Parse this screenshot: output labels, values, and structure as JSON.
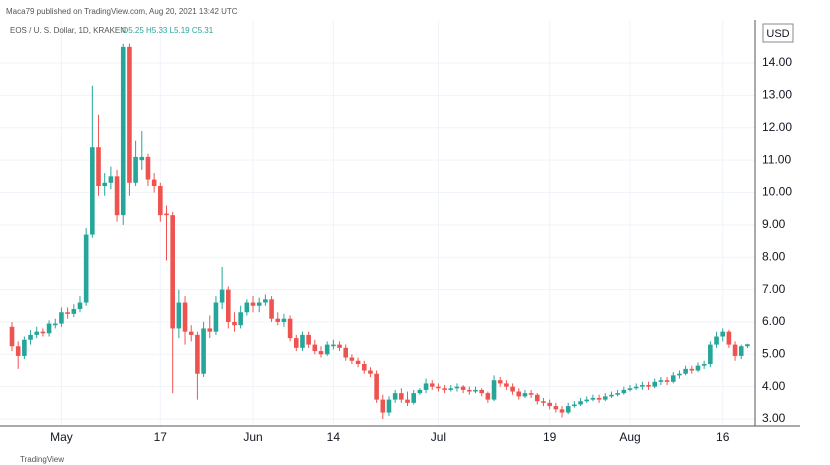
{
  "header": {
    "publisher": "Maca79 published on TradingView.com, Aug 20, 2021 13:42 UTC",
    "footer": "TradingView"
  },
  "chart_data": {
    "type": "candlestick",
    "symbol": "EOS / U. S. Dollar, 1D, KRAKEN",
    "legend": "O5.25 H5.33 L5.19 C5.31",
    "currency": "USD",
    "up_color": "#26a69a",
    "down_color": "#ef5350",
    "grid": true,
    "ylim": [
      2.8,
      15.3
    ],
    "yticks": [
      {
        "value": 3,
        "label": "3.00"
      },
      {
        "value": 4,
        "label": "4.00"
      },
      {
        "value": 5,
        "label": "5.00"
      },
      {
        "value": 6,
        "label": "6.00"
      },
      {
        "value": 7,
        "label": "7.00"
      },
      {
        "value": 8,
        "label": "8.00"
      },
      {
        "value": 9,
        "label": "9.00"
      },
      {
        "value": 10,
        "label": "10.00"
      },
      {
        "value": 11,
        "label": "11.00"
      },
      {
        "value": 12,
        "label": "12.00"
      },
      {
        "value": 13,
        "label": "13.00"
      },
      {
        "value": 14,
        "label": "14.00"
      }
    ],
    "categories": [
      null,
      null,
      null,
      null,
      null,
      null,
      null,
      null,
      "May",
      null,
      null,
      null,
      null,
      null,
      null,
      null,
      null,
      null,
      null,
      null,
      null,
      null,
      null,
      null,
      "17",
      null,
      null,
      null,
      null,
      null,
      null,
      null,
      null,
      null,
      null,
      null,
      null,
      null,
      null,
      "Jun",
      null,
      null,
      null,
      null,
      null,
      null,
      null,
      null,
      null,
      null,
      null,
      null,
      "14",
      null,
      null,
      null,
      null,
      null,
      null,
      null,
      null,
      null,
      null,
      null,
      null,
      null,
      null,
      null,
      null,
      "Jul",
      null,
      null,
      null,
      null,
      null,
      null,
      null,
      null,
      null,
      null,
      null,
      null,
      null,
      null,
      null,
      null,
      null,
      "19",
      null,
      null,
      null,
      null,
      null,
      null,
      null,
      null,
      null,
      null,
      null,
      null,
      "Aug",
      null,
      null,
      null,
      null,
      null,
      null,
      null,
      null,
      null,
      null,
      null,
      null,
      null,
      null,
      "16",
      null,
      null,
      null,
      null
    ],
    "open": [
      5.85,
      5.25,
      4.95,
      5.45,
      5.6,
      5.7,
      5.65,
      5.9,
      5.95,
      6.3,
      6.25,
      6.4,
      6.6,
      8.7,
      11.4,
      10.2,
      10.3,
      10.5,
      9.3,
      14.5,
      10.3,
      11.0,
      11.1,
      10.4,
      10.2,
      9.35,
      9.3,
      5.8,
      6.6,
      5.7,
      5.6,
      4.4,
      5.8,
      5.7,
      6.6,
      7.0,
      6.0,
      5.9,
      6.3,
      6.6,
      6.5,
      6.6,
      6.7,
      6.1,
      6.0,
      6.1,
      5.5,
      5.2,
      5.6,
      5.3,
      5.1,
      5.0,
      5.25,
      5.3,
      5.2,
      4.9,
      4.8,
      4.7,
      4.5,
      4.4,
      3.6,
      3.2,
      3.6,
      3.8,
      3.6,
      3.5,
      3.8,
      3.9,
      4.1,
      4.0,
      3.95,
      3.9,
      3.95,
      4.0,
      3.9,
      3.85,
      3.9,
      3.8,
      3.6,
      4.2,
      4.1,
      4.0,
      3.85,
      3.7,
      3.8,
      3.75,
      3.55,
      3.5,
      3.4,
      3.3,
      3.2,
      3.4,
      3.45,
      3.55,
      3.6,
      3.65,
      3.6,
      3.7,
      3.75,
      3.8,
      3.9,
      3.95,
      4.0,
      4.05,
      4.0,
      4.15,
      4.2,
      4.15,
      4.35,
      4.4,
      4.55,
      4.5,
      4.65,
      4.7,
      5.3,
      5.55,
      5.7,
      5.3,
      4.95,
      5.25
    ],
    "high": [
      6.0,
      5.4,
      5.55,
      5.75,
      5.85,
      5.8,
      6.05,
      6.1,
      6.45,
      6.45,
      6.55,
      6.8,
      8.9,
      13.3,
      12.4,
      10.6,
      10.8,
      10.7,
      14.6,
      14.6,
      11.6,
      11.9,
      11.2,
      10.6,
      10.3,
      9.6,
      9.4,
      7.0,
      6.8,
      5.9,
      5.7,
      6.0,
      6.2,
      6.8,
      7.7,
      7.1,
      6.3,
      6.5,
      6.7,
      6.8,
      6.75,
      6.85,
      6.8,
      6.3,
      6.25,
      6.2,
      5.6,
      5.7,
      5.7,
      5.45,
      5.25,
      5.4,
      5.45,
      5.4,
      5.3,
      5.0,
      4.9,
      4.8,
      4.6,
      4.5,
      3.75,
      3.7,
      3.9,
      3.95,
      3.85,
      3.9,
      3.95,
      4.25,
      4.2,
      4.1,
      4.05,
      4.05,
      4.1,
      4.05,
      4.0,
      4.0,
      3.95,
      3.85,
      4.35,
      4.3,
      4.2,
      4.1,
      3.95,
      3.9,
      3.9,
      3.8,
      3.65,
      3.6,
      3.5,
      3.4,
      3.5,
      3.55,
      3.65,
      3.7,
      3.75,
      3.75,
      3.8,
      3.85,
      3.9,
      4.0,
      4.05,
      4.1,
      4.15,
      4.15,
      4.25,
      4.3,
      4.3,
      4.45,
      4.5,
      4.65,
      4.65,
      4.75,
      4.8,
      5.4,
      5.7,
      5.8,
      5.75,
      5.4,
      5.3,
      5.33
    ],
    "low": [
      5.1,
      4.55,
      4.85,
      5.3,
      5.5,
      5.55,
      5.55,
      5.8,
      5.85,
      6.1,
      6.15,
      6.3,
      6.5,
      8.6,
      9.9,
      9.9,
      10.1,
      9.1,
      9.0,
      9.9,
      10.2,
      10.7,
      10.2,
      10.0,
      9.1,
      7.9,
      3.8,
      5.5,
      5.3,
      5.4,
      3.6,
      4.3,
      5.5,
      5.6,
      6.4,
      5.8,
      5.7,
      5.8,
      6.2,
      6.3,
      6.3,
      6.5,
      6.0,
      5.9,
      5.85,
      5.4,
      5.1,
      5.1,
      5.2,
      5.0,
      4.9,
      4.95,
      5.15,
      5.1,
      4.8,
      4.7,
      4.6,
      4.4,
      4.3,
      3.5,
      3.0,
      3.1,
      3.5,
      3.5,
      3.4,
      3.45,
      3.75,
      3.8,
      3.9,
      3.85,
      3.8,
      3.85,
      3.85,
      3.8,
      3.75,
      3.8,
      3.7,
      3.5,
      3.55,
      4.0,
      3.9,
      3.75,
      3.6,
      3.65,
      3.65,
      3.45,
      3.4,
      3.3,
      3.2,
      3.05,
      3.15,
      3.35,
      3.4,
      3.5,
      3.55,
      3.5,
      3.55,
      3.65,
      3.7,
      3.75,
      3.85,
      3.9,
      3.9,
      3.9,
      3.95,
      4.05,
      4.05,
      4.1,
      4.25,
      4.35,
      4.4,
      4.45,
      4.55,
      4.6,
      5.2,
      5.4,
      5.2,
      4.8,
      4.85,
      5.19
    ],
    "close": [
      5.25,
      4.95,
      5.45,
      5.6,
      5.7,
      5.65,
      5.95,
      5.95,
      6.3,
      6.25,
      6.4,
      6.6,
      8.7,
      11.4,
      10.2,
      10.3,
      10.5,
      9.3,
      14.5,
      10.3,
      11.1,
      11.1,
      10.4,
      10.2,
      9.3,
      9.3,
      5.8,
      6.6,
      5.7,
      5.6,
      4.4,
      5.8,
      5.7,
      6.6,
      7.0,
      6.0,
      5.9,
      6.3,
      6.6,
      6.5,
      6.6,
      6.7,
      6.1,
      6.0,
      6.1,
      5.5,
      5.2,
      5.6,
      5.3,
      5.1,
      5.0,
      5.3,
      5.3,
      5.2,
      4.9,
      4.8,
      4.7,
      4.5,
      4.4,
      3.6,
      3.2,
      3.6,
      3.8,
      3.6,
      3.5,
      3.8,
      3.9,
      4.1,
      4.0,
      3.95,
      3.9,
      3.95,
      4.0,
      3.9,
      3.85,
      3.9,
      3.8,
      3.6,
      4.2,
      4.1,
      4.0,
      3.85,
      3.7,
      3.8,
      3.75,
      3.55,
      3.5,
      3.4,
      3.3,
      3.2,
      3.4,
      3.45,
      3.55,
      3.6,
      3.65,
      3.6,
      3.7,
      3.75,
      3.8,
      3.9,
      3.95,
      4.0,
      4.05,
      4.0,
      4.15,
      4.2,
      4.15,
      4.35,
      4.4,
      4.55,
      4.5,
      4.65,
      4.7,
      5.3,
      5.55,
      5.7,
      5.3,
      4.95,
      5.25,
      5.31
    ]
  }
}
